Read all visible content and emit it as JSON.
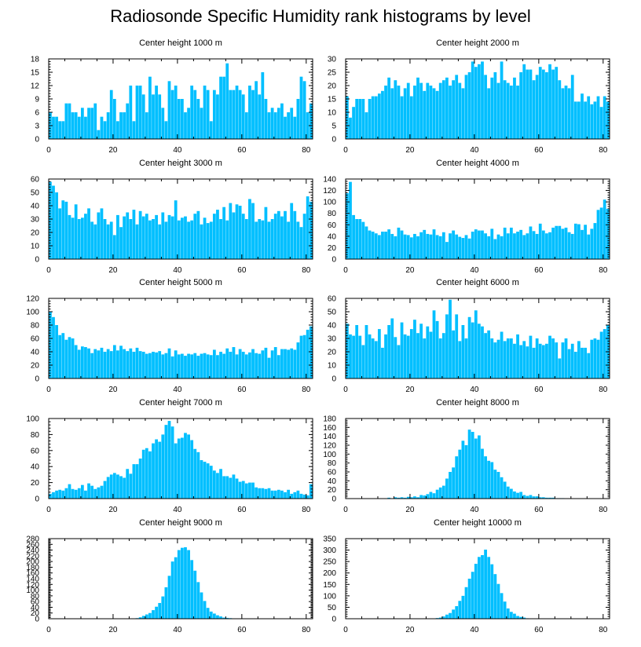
{
  "title": "Radiosonde Specific Humidity rank histograms by level",
  "bar_color": "#00bfff",
  "chart_data": [
    {
      "type": "bar",
      "title": "Center height 1000 m",
      "xlabel": "",
      "ylabel": "",
      "xlim": [
        0,
        82
      ],
      "ylim": [
        0,
        18
      ],
      "yticks": [
        0,
        3,
        6,
        9,
        12,
        15,
        18
      ],
      "xticks": [
        0,
        20,
        40,
        60,
        80
      ],
      "values": [
        6,
        5,
        5,
        4,
        4,
        8,
        8,
        6,
        6,
        5,
        7,
        5,
        7,
        7,
        8,
        2,
        5,
        4,
        6,
        11,
        9,
        4,
        6,
        6,
        8,
        12,
        4,
        12,
        12,
        10,
        6,
        14,
        10,
        12,
        10,
        7,
        4,
        13,
        11,
        12,
        9,
        9,
        6,
        7,
        12,
        11,
        9,
        7,
        12,
        11,
        4,
        11,
        10,
        14,
        14,
        17,
        11,
        11,
        12,
        11,
        10,
        6,
        12,
        11,
        13,
        10,
        15,
        9,
        6,
        7,
        6,
        7,
        8,
        5,
        6,
        7,
        5,
        9,
        14,
        13,
        6,
        8
      ]
    },
    {
      "type": "bar",
      "title": "Center height 2000 m",
      "xlabel": "",
      "ylabel": "",
      "xlim": [
        0,
        82
      ],
      "ylim": [
        0,
        30
      ],
      "yticks": [
        0,
        5,
        10,
        15,
        20,
        25,
        30
      ],
      "xticks": [
        0,
        20,
        40,
        60,
        80
      ],
      "values": [
        16,
        8,
        12,
        15,
        15,
        15,
        10,
        15,
        16,
        16,
        17,
        18,
        20,
        23,
        19,
        22,
        20,
        16,
        19,
        21,
        16,
        20,
        23,
        21,
        18,
        21,
        20,
        19,
        18,
        21,
        22,
        23,
        20,
        22,
        24,
        21,
        19,
        24,
        25,
        29,
        27,
        28,
        29,
        24,
        19,
        23,
        25,
        21,
        29,
        22,
        21,
        20,
        23,
        20,
        25,
        28,
        26,
        26,
        22,
        24,
        27,
        26,
        25,
        28,
        26,
        27,
        22,
        19,
        20,
        19,
        24,
        14,
        14,
        17,
        14,
        16,
        13,
        14,
        16,
        12,
        16,
        14
      ]
    },
    {
      "type": "bar",
      "title": "Center height 3000 m",
      "xlabel": "",
      "ylabel": "",
      "xlim": [
        0,
        82
      ],
      "ylim": [
        0,
        60
      ],
      "yticks": [
        0,
        10,
        20,
        30,
        40,
        50,
        60
      ],
      "xticks": [
        0,
        20,
        40,
        60,
        80
      ],
      "values": [
        58,
        55,
        50,
        38,
        44,
        43,
        33,
        31,
        41,
        30,
        31,
        34,
        38,
        28,
        26,
        35,
        38,
        30,
        26,
        28,
        18,
        33,
        24,
        32,
        35,
        30,
        37,
        26,
        36,
        32,
        34,
        29,
        30,
        33,
        26,
        35,
        28,
        33,
        32,
        44,
        29,
        31,
        32,
        28,
        29,
        34,
        36,
        26,
        31,
        27,
        28,
        34,
        37,
        30,
        39,
        29,
        42,
        35,
        41,
        40,
        34,
        30,
        45,
        42,
        28,
        30,
        29,
        39,
        28,
        30,
        34,
        36,
        32,
        36,
        28,
        42,
        36,
        28,
        24,
        34,
        47,
        43
      ]
    },
    {
      "type": "bar",
      "title": "Center height 4000 m",
      "xlabel": "",
      "ylabel": "",
      "xlim": [
        0,
        82
      ],
      "ylim": [
        0,
        140
      ],
      "yticks": [
        0,
        20,
        40,
        60,
        80,
        100,
        120,
        140
      ],
      "xticks": [
        0,
        20,
        40,
        60,
        80
      ],
      "values": [
        115,
        135,
        77,
        70,
        70,
        65,
        57,
        50,
        48,
        45,
        42,
        48,
        48,
        52,
        44,
        40,
        55,
        50,
        43,
        42,
        38,
        44,
        40,
        47,
        51,
        44,
        43,
        52,
        42,
        40,
        47,
        30,
        45,
        50,
        43,
        39,
        37,
        42,
        36,
        48,
        52,
        50,
        50,
        45,
        40,
        53,
        35,
        43,
        40,
        55,
        45,
        55,
        45,
        48,
        51,
        42,
        45,
        57,
        49,
        44,
        62,
        50,
        45,
        47,
        55,
        58,
        58,
        53,
        55,
        47,
        44,
        62,
        61,
        51,
        60,
        43,
        53,
        63,
        86,
        90,
        104,
        88
      ]
    },
    {
      "type": "bar",
      "title": "Center height 5000 m",
      "xlabel": "",
      "ylabel": "",
      "xlim": [
        0,
        82
      ],
      "ylim": [
        0,
        120
      ],
      "yticks": [
        0,
        20,
        40,
        60,
        80,
        100,
        120
      ],
      "xticks": [
        0,
        20,
        40,
        60,
        80
      ],
      "values": [
        100,
        92,
        80,
        65,
        68,
        58,
        62,
        60,
        50,
        43,
        48,
        47,
        45,
        38,
        44,
        42,
        46,
        40,
        44,
        41,
        50,
        42,
        49,
        44,
        41,
        45,
        40,
        46,
        41,
        40,
        37,
        38,
        40,
        39,
        41,
        36,
        38,
        45,
        33,
        42,
        36,
        37,
        34,
        37,
        36,
        38,
        34,
        37,
        38,
        36,
        35,
        43,
        35,
        40,
        37,
        45,
        40,
        47,
        36,
        44,
        40,
        36,
        39,
        44,
        38,
        37,
        42,
        46,
        31,
        42,
        47,
        35,
        44,
        44,
        43,
        45,
        43,
        54,
        64,
        65,
        73,
        78
      ]
    },
    {
      "type": "bar",
      "title": "Center height 6000 m",
      "xlabel": "",
      "ylabel": "",
      "xlim": [
        0,
        82
      ],
      "ylim": [
        0,
        60
      ],
      "yticks": [
        0,
        10,
        20,
        30,
        40,
        50,
        60
      ],
      "xticks": [
        0,
        20,
        40,
        60,
        80
      ],
      "values": [
        41,
        33,
        32,
        40,
        32,
        25,
        40,
        33,
        30,
        28,
        37,
        23,
        33,
        40,
        45,
        31,
        25,
        42,
        33,
        32,
        37,
        44,
        34,
        41,
        30,
        39,
        35,
        51,
        43,
        30,
        34,
        48,
        59,
        36,
        48,
        28,
        40,
        30,
        46,
        42,
        51,
        41,
        39,
        34,
        36,
        30,
        27,
        29,
        35,
        28,
        30,
        30,
        26,
        33,
        25,
        28,
        24,
        32,
        23,
        30,
        26,
        25,
        26,
        32,
        30,
        27,
        15,
        27,
        30,
        22,
        26,
        20,
        28,
        23,
        23,
        19,
        29,
        30,
        29,
        35,
        37,
        40
      ]
    },
    {
      "type": "bar",
      "title": "Center height 7000 m",
      "xlabel": "",
      "ylabel": "",
      "xlim": [
        0,
        82
      ],
      "ylim": [
        0,
        100
      ],
      "yticks": [
        0,
        20,
        40,
        60,
        80,
        100
      ],
      "xticks": [
        0,
        20,
        40,
        60,
        80
      ],
      "values": [
        6,
        8,
        10,
        11,
        10,
        13,
        18,
        12,
        11,
        13,
        17,
        10,
        19,
        16,
        12,
        14,
        16,
        22,
        27,
        30,
        32,
        30,
        28,
        26,
        37,
        31,
        43,
        43,
        50,
        61,
        63,
        59,
        69,
        74,
        71,
        80,
        92,
        97,
        90,
        69,
        75,
        76,
        82,
        80,
        73,
        62,
        58,
        48,
        46,
        44,
        41,
        35,
        32,
        37,
        28,
        28,
        26,
        30,
        25,
        21,
        22,
        19,
        20,
        20,
        14,
        13,
        13,
        12,
        13,
        10,
        10,
        11,
        10,
        8,
        11,
        6,
        8,
        10,
        6,
        5,
        4,
        18
      ]
    },
    {
      "type": "bar",
      "title": "Center height 8000 m",
      "xlabel": "",
      "ylabel": "",
      "xlim": [
        0,
        82
      ],
      "ylim": [
        0,
        180
      ],
      "yticks": [
        0,
        20,
        40,
        60,
        80,
        100,
        120,
        140,
        160,
        180
      ],
      "xticks": [
        0,
        20,
        40,
        60,
        80
      ],
      "values": [
        0,
        0,
        0,
        0,
        0,
        0,
        0,
        0,
        0,
        0,
        0,
        0,
        0,
        2,
        0,
        3,
        2,
        3,
        2,
        4,
        3,
        5,
        3,
        8,
        7,
        10,
        15,
        12,
        20,
        25,
        29,
        45,
        60,
        70,
        95,
        110,
        130,
        120,
        155,
        150,
        135,
        142,
        112,
        95,
        85,
        82,
        65,
        60,
        48,
        38,
        27,
        22,
        16,
        13,
        15,
        8,
        6,
        8,
        5,
        5,
        3,
        3,
        2,
        2,
        2,
        1,
        1,
        1,
        0,
        0,
        0,
        0,
        0,
        0,
        0,
        0,
        0,
        0,
        0,
        0,
        0,
        0
      ]
    },
    {
      "type": "bar",
      "title": "Center height 9000 m",
      "xlabel": "",
      "ylabel": "",
      "xlim": [
        0,
        82
      ],
      "ylim": [
        0,
        280
      ],
      "yticks": [
        0,
        20,
        40,
        60,
        80,
        100,
        120,
        140,
        160,
        180,
        200,
        220,
        240,
        260,
        280
      ],
      "xticks": [
        0,
        20,
        40,
        60,
        80
      ],
      "values": [
        0,
        0,
        0,
        0,
        0,
        0,
        0,
        0,
        0,
        0,
        0,
        0,
        0,
        0,
        0,
        0,
        0,
        0,
        0,
        0,
        0,
        0,
        0,
        0,
        0,
        0,
        0,
        2,
        5,
        10,
        15,
        20,
        30,
        42,
        55,
        78,
        110,
        150,
        200,
        215,
        240,
        248,
        250,
        240,
        205,
        168,
        128,
        92,
        62,
        38,
        25,
        18,
        12,
        8,
        4,
        3,
        2,
        1,
        1,
        0,
        0,
        0,
        0,
        0,
        0,
        0,
        0,
        0,
        0,
        0,
        0,
        0,
        0,
        0,
        0,
        0,
        0,
        0,
        0,
        0,
        0,
        0
      ]
    },
    {
      "type": "bar",
      "title": "Center height 10000 m",
      "xlabel": "",
      "ylabel": "",
      "xlim": [
        0,
        82
      ],
      "ylim": [
        0,
        350
      ],
      "yticks": [
        0,
        50,
        100,
        150,
        200,
        250,
        300,
        350
      ],
      "xticks": [
        0,
        20,
        40,
        60,
        80
      ],
      "values": [
        0,
        0,
        0,
        0,
        0,
        0,
        0,
        0,
        0,
        0,
        0,
        0,
        0,
        0,
        0,
        0,
        0,
        0,
        0,
        0,
        0,
        0,
        0,
        0,
        0,
        0,
        0,
        1,
        3,
        5,
        10,
        18,
        25,
        40,
        55,
        78,
        100,
        138,
        175,
        205,
        240,
        270,
        278,
        302,
        270,
        238,
        195,
        152,
        112,
        75,
        45,
        30,
        22,
        12,
        8,
        5,
        2,
        1,
        0,
        0,
        0,
        0,
        0,
        0,
        0,
        0,
        0,
        0,
        0,
        0,
        0,
        0,
        0,
        0,
        0,
        0,
        0,
        0,
        0,
        0,
        0,
        0
      ]
    }
  ]
}
